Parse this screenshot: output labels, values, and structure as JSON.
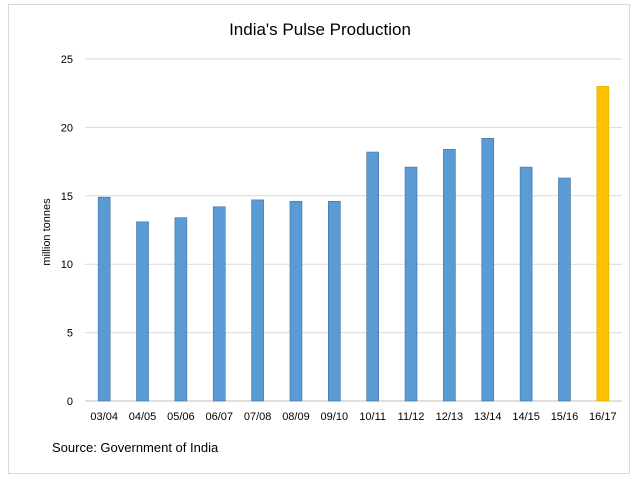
{
  "chart_data": {
    "type": "bar",
    "title": "India's Pulse Production",
    "ylabel": "million tonnes",
    "xlabel": "",
    "ylim": [
      0,
      25
    ],
    "yticks": [
      0,
      5,
      10,
      15,
      20,
      25
    ],
    "grid": true,
    "legend": "none",
    "categories": [
      "03/04",
      "04/05",
      "05/06",
      "06/07",
      "07/08",
      "08/09",
      "09/10",
      "10/11",
      "11/12",
      "12/13",
      "13/14",
      "14/15",
      "15/16",
      "16/17"
    ],
    "values": [
      14.9,
      13.1,
      13.4,
      14.2,
      14.7,
      14.6,
      14.6,
      18.2,
      17.1,
      18.4,
      19.2,
      17.1,
      16.3,
      23.0
    ],
    "colors": {
      "default": "#5b9bd5",
      "default_stroke": "#41719c",
      "highlight": "#ffc000",
      "highlight_stroke": "#e0a800",
      "highlight_index": 13
    },
    "source_note": "Source:  Government of India"
  }
}
